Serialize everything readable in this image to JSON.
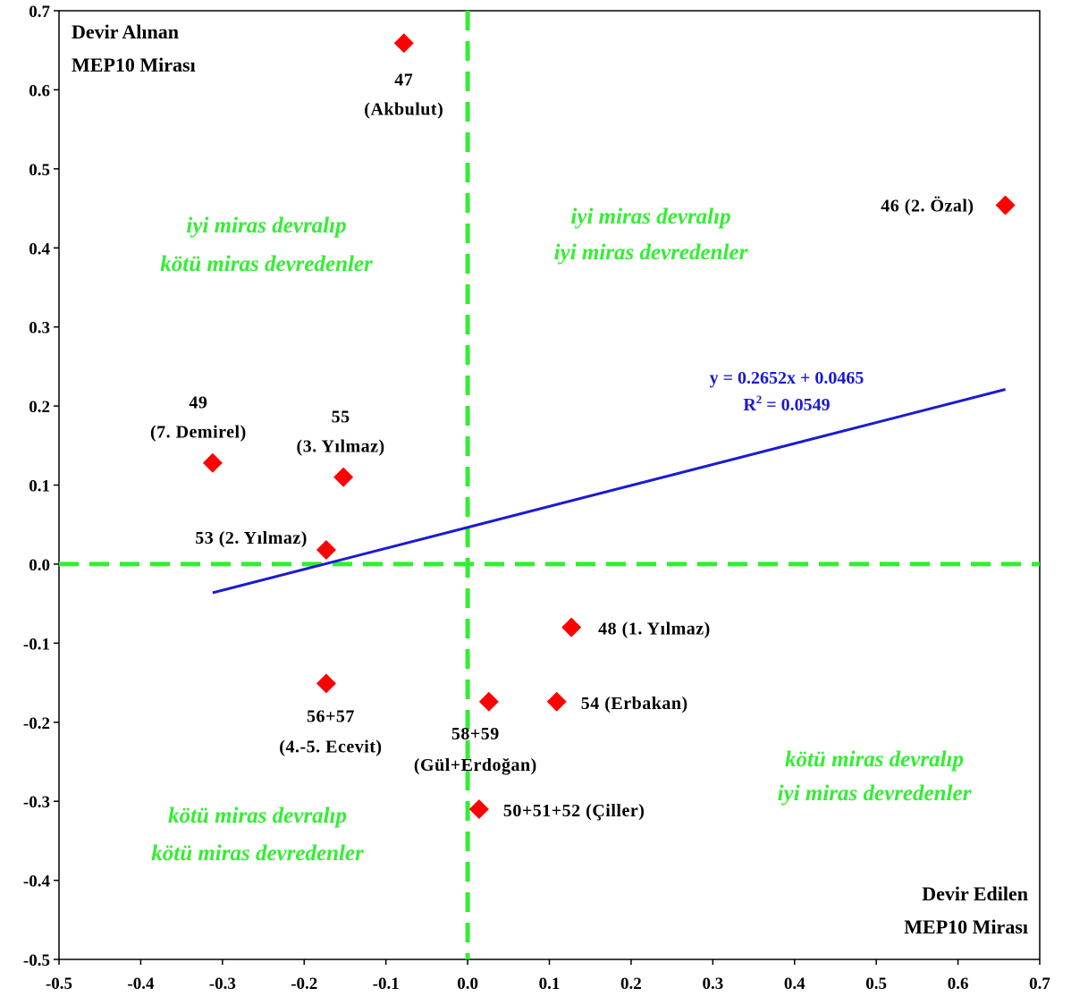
{
  "chart_data": {
    "type": "scatter",
    "xlim": [
      -0.5,
      0.7
    ],
    "ylim": [
      -0.5,
      0.7
    ],
    "x_ticks": [
      "-0.5",
      "-0.4",
      "-0.3",
      "-0.2",
      "-0.1",
      "0.0",
      "0.1",
      "0.2",
      "0.3",
      "0.4",
      "0.5",
      "0.6",
      "0.7"
    ],
    "y_ticks": [
      "0.7",
      "0.6",
      "0.5",
      "0.4",
      "0.3",
      "0.2",
      "0.1",
      "0.0",
      "-0.1",
      "-0.2",
      "-0.3",
      "-0.4",
      "-0.5"
    ],
    "corner_labels": {
      "top_left": [
        "Devir Alınan",
        "MEP10 Mirası"
      ],
      "bottom_right": [
        "Devir Edilen",
        "MEP10 Mirası"
      ]
    },
    "quadrant_labels": {
      "top_left": [
        "iyi miras devralıp",
        "kötü miras devredenler"
      ],
      "top_right": [
        "iyi miras devralıp",
        "iyi miras devredenler"
      ],
      "bottom_left": [
        "kötü miras devralıp",
        "kötü miras devredenler"
      ],
      "bottom_right": [
        "kötü miras devralıp",
        "iyi miras devredenler"
      ]
    },
    "points": [
      {
        "label": [
          "47",
          "(Akbulut)"
        ],
        "x": -0.078,
        "y": 0.659
      },
      {
        "label": [
          "46 (2. Özal)"
        ],
        "x": 0.658,
        "y": 0.454
      },
      {
        "label": [
          "49",
          "(7. Demirel)"
        ],
        "x": -0.312,
        "y": 0.128
      },
      {
        "label": [
          "55",
          "(3. Yılmaz)"
        ],
        "x": -0.152,
        "y": 0.11
      },
      {
        "label": [
          "53 (2. Yılmaz)"
        ],
        "x": -0.173,
        "y": 0.018
      },
      {
        "label": [
          "48 (1. Yılmaz)"
        ],
        "x": 0.127,
        "y": -0.08
      },
      {
        "label": [
          "56+57",
          "(4.-5. Ecevit)"
        ],
        "x": -0.173,
        "y": -0.151
      },
      {
        "label": [
          "58+59",
          "(Gül+Erdoğan)"
        ],
        "x": 0.026,
        "y": -0.174
      },
      {
        "label": [
          "54 (Erbakan)"
        ],
        "x": 0.109,
        "y": -0.174
      },
      {
        "label": [
          "50+51+52 (Çiller)"
        ],
        "x": 0.014,
        "y": -0.31
      }
    ],
    "trendline": {
      "slope": 0.2652,
      "intercept": 0.0465,
      "x_range": [
        -0.312,
        0.658
      ],
      "equation": "y = 0.2652x + 0.0465",
      "r2_prefix": "R",
      "r2_sup": "2",
      "r2_suffix": " = 0.0549"
    },
    "colors": {
      "marker": "#ff0000",
      "trendline": "#1a1ad4",
      "dashed_axes": "#33ee33",
      "quadrant_text": "#33ee33"
    }
  }
}
